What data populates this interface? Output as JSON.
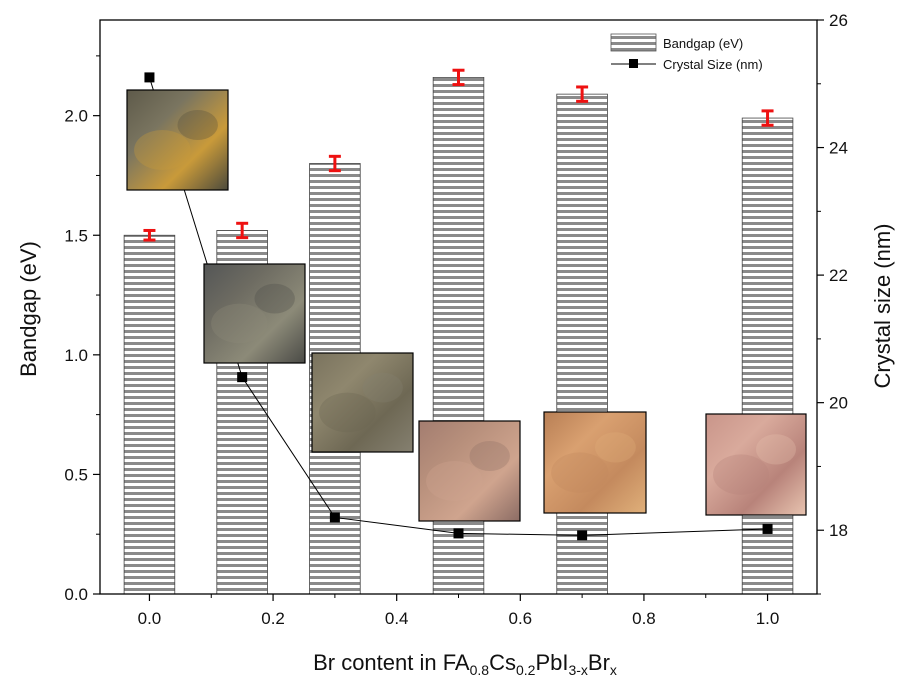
{
  "chart_data": {
    "type": "bar",
    "categories": [
      "0.0",
      "0.15",
      "0.3",
      "0.5",
      "0.7",
      "1.0"
    ],
    "x": [
      0.0,
      0.15,
      0.3,
      0.5,
      0.7,
      1.0
    ],
    "series": [
      {
        "name": "Bandgap (eV)",
        "kind": "bar",
        "axis": "left",
        "values": [
          1.5,
          1.52,
          1.8,
          2.16,
          2.09,
          1.99
        ],
        "errors": [
          0.02,
          0.03,
          0.03,
          0.03,
          0.03,
          0.03
        ]
      },
      {
        "name": "Crystal Size (nm)",
        "kind": "line",
        "axis": "right",
        "values": [
          25.1,
          20.4,
          18.2,
          17.95,
          17.92,
          18.02
        ]
      }
    ],
    "xlabel": {
      "prefix": "Br content in FA",
      "s1": "0.8",
      "t2": "Cs",
      "s2": "0.2",
      "t3": "PbI",
      "s3": "3-x",
      "t4": "Br",
      "s4": "x"
    },
    "ylabel": "Bandgap (eV)",
    "y2label": "Crystal size (nm)",
    "xlim": [
      -0.08,
      1.08
    ],
    "ylim": [
      0,
      2.4
    ],
    "y2lim": [
      17,
      26
    ],
    "xticks": [
      "0.0",
      "0.2",
      "0.4",
      "0.6",
      "0.8",
      "1.0"
    ],
    "xtick_values": [
      0.0,
      0.2,
      0.4,
      0.6,
      0.8,
      1.0
    ],
    "yticks": [
      "0.0",
      "0.5",
      "1.0",
      "1.5",
      "2.0"
    ],
    "ytick_values": [
      0.0,
      0.5,
      1.0,
      1.5,
      2.0
    ],
    "y2ticks": [
      "18",
      "20",
      "22",
      "24",
      "26"
    ],
    "y2tick_values": [
      18,
      20,
      22,
      24,
      26
    ],
    "legend_position": "top-right",
    "grid": false,
    "colors": {
      "error_bar": "#ee1111",
      "marker": "#000000",
      "stripe_dark": "#8a8a8a",
      "stripe_light": "#ffffff"
    },
    "insets": [
      {
        "name": "film-image-0.0",
        "colors": [
          "#5e5a4a",
          "#7a7560",
          "#c99a3a",
          "#4c4a3c"
        ]
      },
      {
        "name": "film-image-0.15",
        "colors": [
          "#545656",
          "#6e6c62",
          "#8c8a78",
          "#4a4a46"
        ]
      },
      {
        "name": "film-image-0.3",
        "colors": [
          "#7a735e",
          "#8f876e",
          "#6e6854",
          "#858070"
        ]
      },
      {
        "name": "film-image-0.5",
        "colors": [
          "#a37d70",
          "#b8907c",
          "#cfa48e",
          "#8c6c64"
        ]
      },
      {
        "name": "film-image-0.7",
        "colors": [
          "#b87f55",
          "#d9a070",
          "#c48a5e",
          "#e0b07a"
        ]
      },
      {
        "name": "film-image-1.0",
        "colors": [
          "#c9958a",
          "#d9aa9c",
          "#b8837a",
          "#e8c4b0"
        ]
      }
    ]
  }
}
